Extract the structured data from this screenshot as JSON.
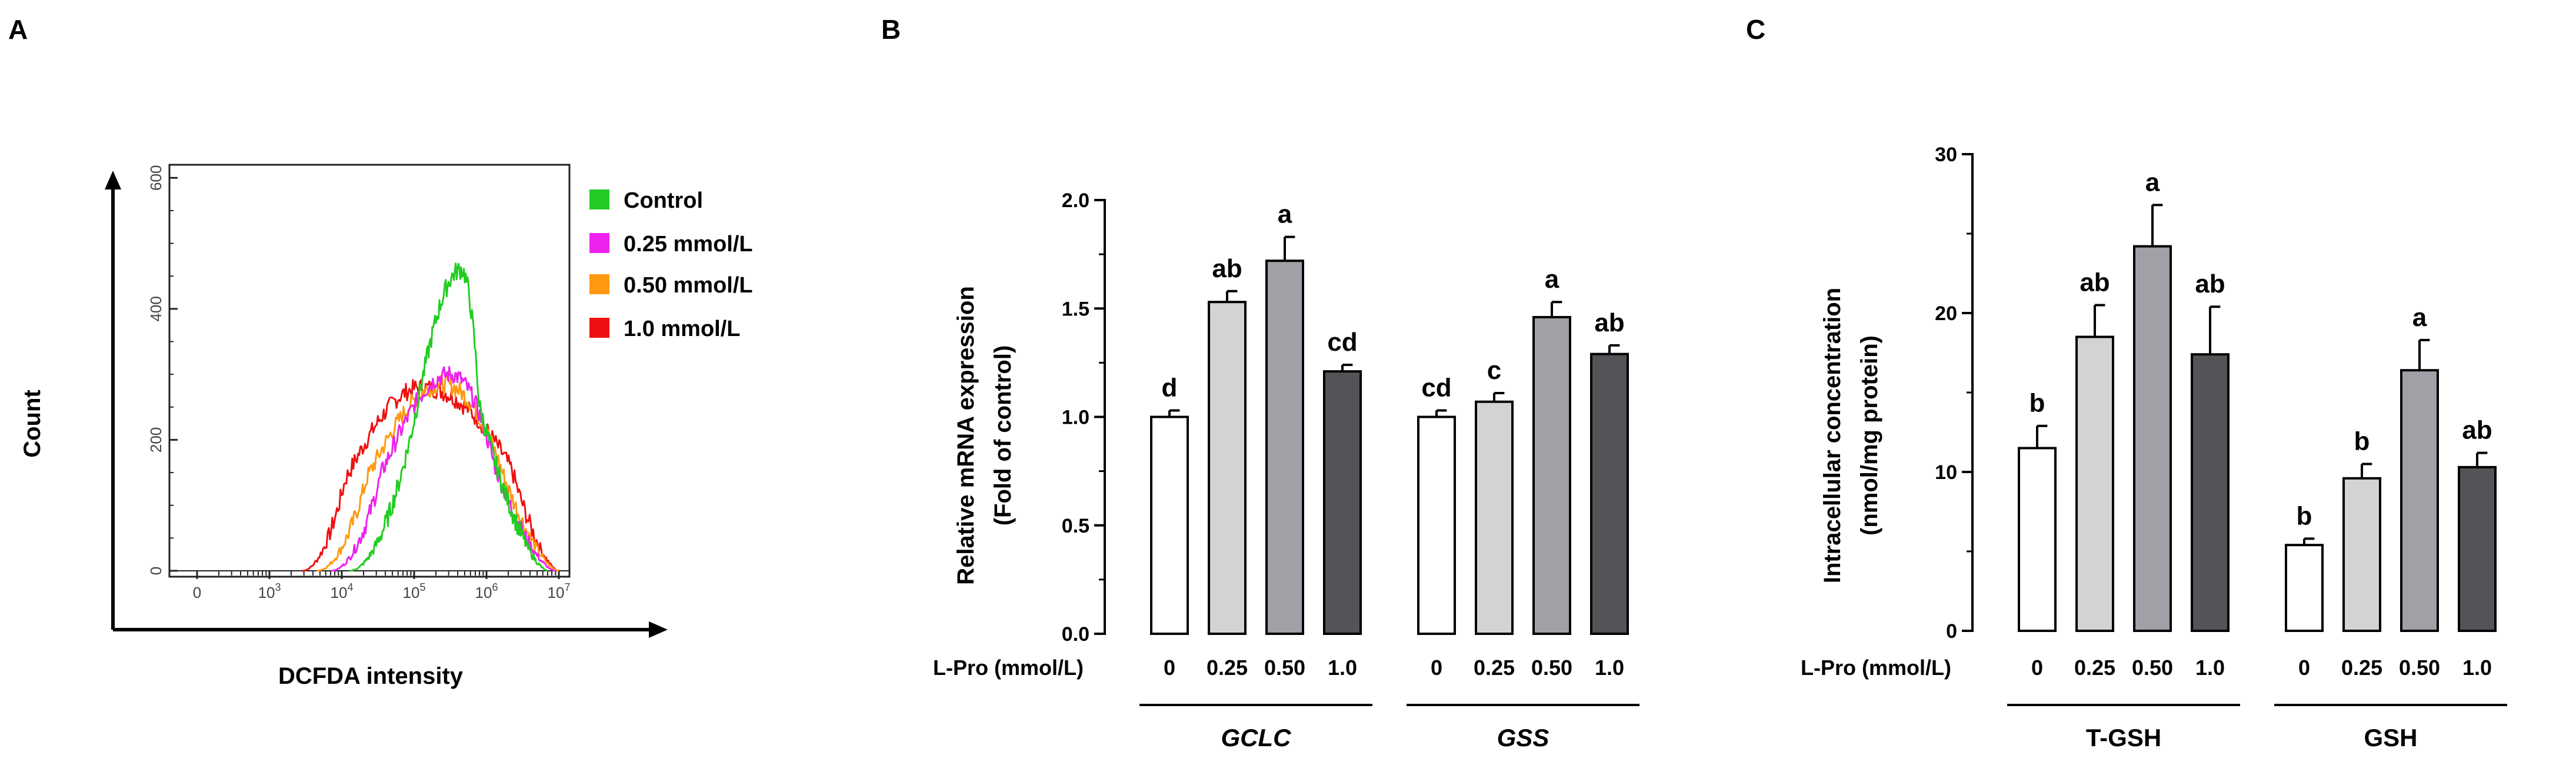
{
  "panels": {
    "a": "A",
    "b": "B",
    "c": "C"
  },
  "colors": {
    "control": "#22cc22",
    "c025": "#ee22ee",
    "c050": "#ff9911",
    "c100": "#ee1111",
    "bar0": "#ffffff",
    "bar025": "#d3d3d5",
    "bar050": "#a0a0a6",
    "bar100": "#545458"
  },
  "chart_data": [
    {
      "type": "line",
      "title": "",
      "xlabel": "DCFDA intensity",
      "ylabel": "Count",
      "y_ticks": [
        "0",
        "200",
        "400",
        "600"
      ],
      "ylim": [
        0,
        620
      ],
      "x_ticks": [
        "0",
        "10^3",
        "10^4",
        "10^5",
        "10^6",
        "10^7"
      ],
      "x_tick_labels": [
        {
          "base": "0",
          "exp": ""
        },
        {
          "base": "10",
          "exp": "3"
        },
        {
          "base": "10",
          "exp": "4"
        },
        {
          "base": "10",
          "exp": "5"
        },
        {
          "base": "10",
          "exp": "6"
        },
        {
          "base": "10",
          "exp": "7"
        }
      ],
      "legend": [
        "Control",
        "0.25 mmol/L",
        "0.50 mmol/L",
        "1.0 mmol/L"
      ],
      "legend_position": "right",
      "x_axis_units": "log10 decades (0 = 0, 1 = 10^3, ..., 5 = 10^7)",
      "series": [
        {
          "name": "Control",
          "start": 2.1,
          "rise": 3.0,
          "peak_x": 3.65,
          "peak_y": 460,
          "fall": 3.9,
          "end": 4.85,
          "noise": 30
        },
        {
          "name": "0.25 mmol/L",
          "start": 1.85,
          "rise": 2.55,
          "peak_x": 3.5,
          "peak_y": 300,
          "fall": 4.1,
          "end": 4.95,
          "noise": 28
        },
        {
          "name": "0.50 mmol/L",
          "start": 1.65,
          "rise": 2.35,
          "peak_x": 3.4,
          "peak_y": 285,
          "fall": 4.2,
          "end": 5.0,
          "noise": 28
        },
        {
          "name": "1.0 mmol/L",
          "start": 1.45,
          "rise": 2.05,
          "peak_x": 3.1,
          "peak_y": 280,
          "fall": 4.35,
          "end": 5.0,
          "noise": 28
        }
      ]
    },
    {
      "type": "bar",
      "title": "",
      "ylabel_line1": "Relative mRNA expression",
      "ylabel_line2": "(Fold of control)",
      "y_ticks": [
        "0.0",
        "0.5",
        "1.0",
        "1.5",
        "2.0"
      ],
      "ylim": [
        0,
        2.0
      ],
      "x_label": "L-Pro (mmol/L)",
      "categories": [
        "0",
        "0.25",
        "0.50",
        "1.0"
      ],
      "groups": [
        {
          "name": "GCLC",
          "values": [
            1.0,
            1.53,
            1.72,
            1.21
          ],
          "errors": [
            0.03,
            0.05,
            0.11,
            0.03
          ],
          "letters": [
            "d",
            "ab",
            "a",
            "cd"
          ]
        },
        {
          "name": "GSS",
          "values": [
            1.0,
            1.07,
            1.46,
            1.29
          ],
          "errors": [
            0.03,
            0.04,
            0.07,
            0.04
          ],
          "letters": [
            "cd",
            "c",
            "a",
            "ab"
          ]
        }
      ]
    },
    {
      "type": "bar",
      "title": "",
      "ylabel_line1": "Intracellular concentration",
      "ylabel_line2": "(nmol/mg protein)",
      "y_ticks": [
        "0",
        "10",
        "20",
        "30"
      ],
      "ylim": [
        0,
        30
      ],
      "x_label": "L-Pro (mmol/L)",
      "categories": [
        "0",
        "0.25",
        "0.50",
        "1.0"
      ],
      "groups": [
        {
          "name": "T-GSH",
          "values": [
            11.5,
            18.5,
            24.2,
            17.4
          ],
          "errors": [
            1.4,
            2.0,
            2.6,
            3.0
          ],
          "letters": [
            "b",
            "ab",
            "a",
            "ab"
          ]
        },
        {
          "name": "GSH",
          "values": [
            5.4,
            9.6,
            16.4,
            10.3
          ],
          "errors": [
            0.4,
            0.9,
            1.9,
            0.9
          ],
          "letters": [
            "b",
            "b",
            "a",
            "ab"
          ]
        }
      ]
    }
  ]
}
